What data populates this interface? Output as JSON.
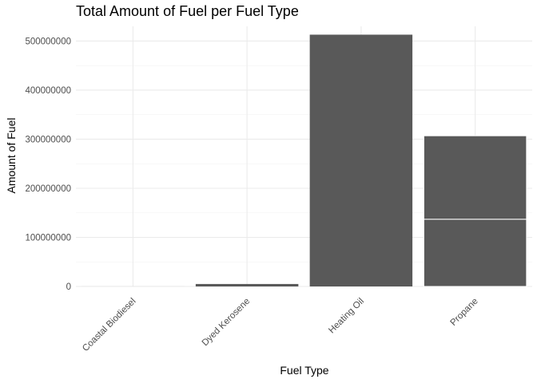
{
  "chart_data": {
    "type": "bar",
    "stacked": true,
    "title": "Total Amount of Fuel per Fuel Type",
    "xlabel": "Fuel Type",
    "ylabel": "Amount of Fuel",
    "categories": [
      "Coastal Biodiesel",
      "Dyed Kerosene",
      "Heating Oil",
      "Propane"
    ],
    "segments": [
      [
        60000
      ],
      [
        5000000
      ],
      [
        513000000
      ],
      [
        137000000,
        170000000
      ]
    ],
    "ylim": [
      0,
      530000000
    ],
    "yticks": [
      0,
      100000000,
      200000000,
      300000000,
      400000000,
      500000000
    ],
    "ytick_labels": [
      "0",
      "100000000",
      "200000000",
      "300000000",
      "400000000",
      "500000000"
    ],
    "grid": true,
    "bar_color": "#595959",
    "segment_border_color": "#ffffff"
  }
}
